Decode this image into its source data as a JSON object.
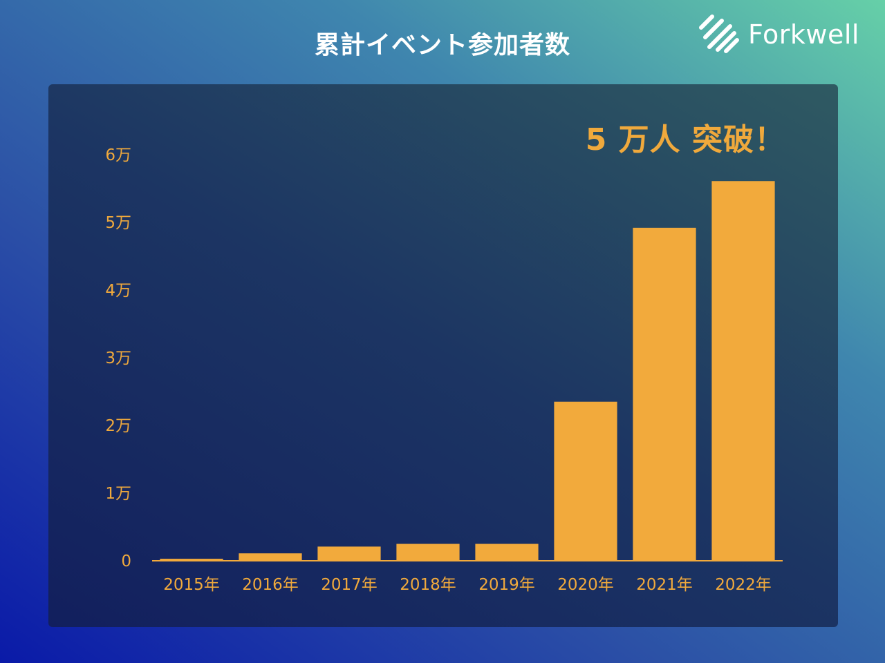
{
  "page": {
    "title": "累計イベント参加者数"
  },
  "logo": {
    "text": "Forkwell"
  },
  "headline": "5 万人 突破！",
  "colors": {
    "bar": "#f2aa3c",
    "text_accent": "#f0a93c",
    "title": "#ffffff"
  },
  "chart_data": {
    "type": "bar",
    "title": "累計イベント参加者数",
    "categories": [
      "2015年",
      "2016年",
      "2017年",
      "2018年",
      "2019年",
      "2020年",
      "2021年",
      "2022年"
    ],
    "values": [
      300,
      1100,
      2100,
      2500,
      2500,
      23500,
      49200,
      56100
    ],
    "ylim": [
      0,
      60000
    ],
    "yticks": [
      0,
      10000,
      20000,
      30000,
      40000,
      50000,
      60000
    ],
    "ytick_labels": [
      "0",
      "1万",
      "2万",
      "3万",
      "4万",
      "5万",
      "6万"
    ],
    "grid": false,
    "legend": "none"
  }
}
